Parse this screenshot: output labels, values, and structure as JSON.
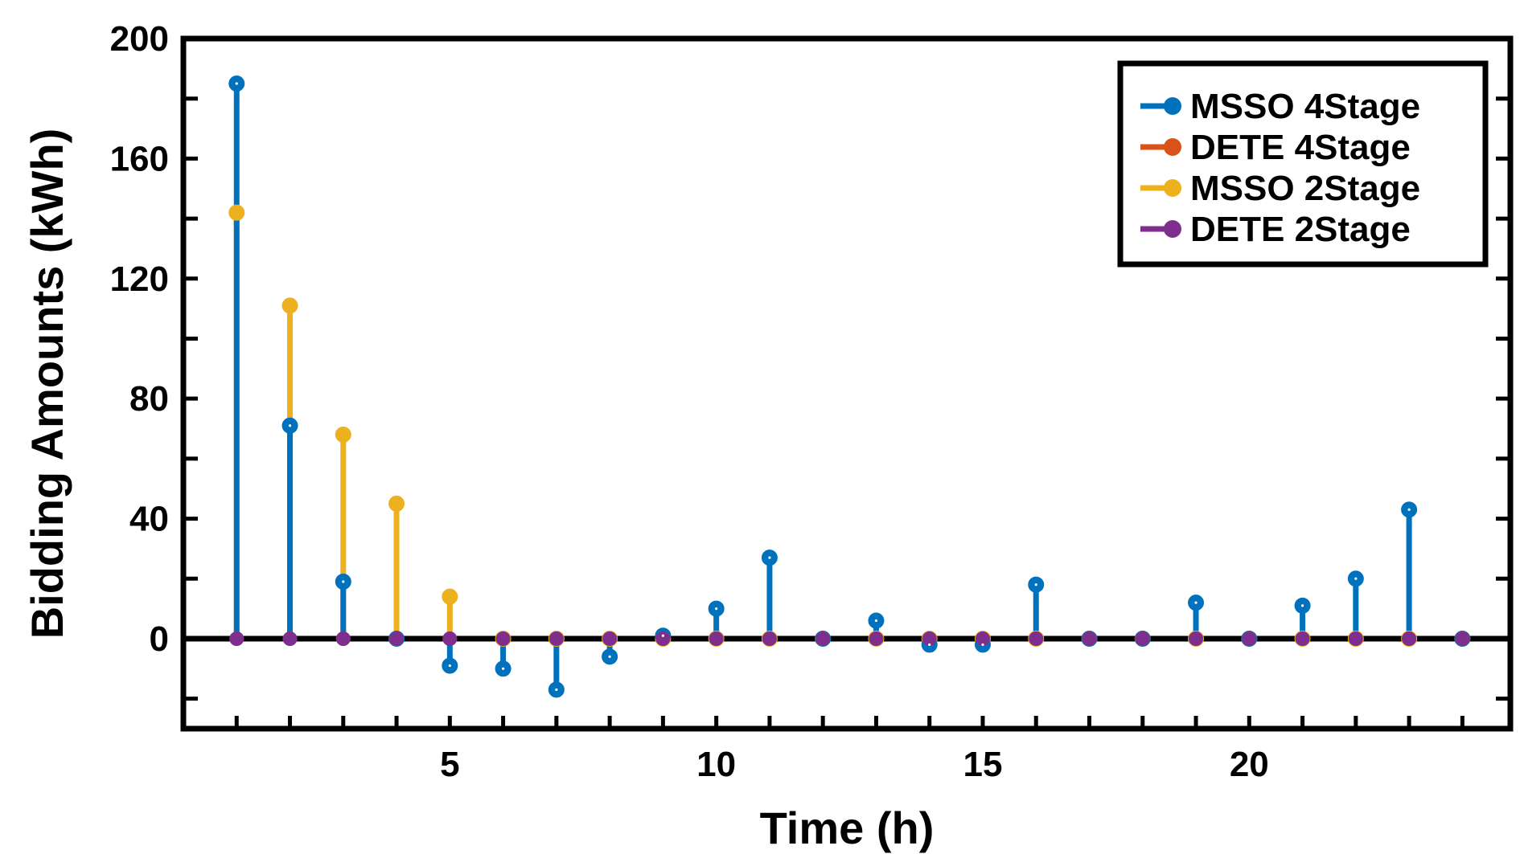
{
  "chart_data": {
    "type": "stem",
    "xlabel": "Time (h)",
    "ylabel": "Bidding Amounts (kWh)",
    "title": "",
    "xlim": [
      0,
      24.9
    ],
    "ylim": [
      -30,
      200
    ],
    "x_ticks": [
      5,
      10,
      15,
      20
    ],
    "y_ticks": [
      0,
      40,
      80,
      120,
      160,
      200
    ],
    "grid": false,
    "legend_position": "top-right",
    "x": [
      1,
      2,
      3,
      4,
      5,
      6,
      7,
      8,
      9,
      10,
      11,
      12,
      13,
      14,
      15,
      16,
      17,
      18,
      19,
      20,
      21,
      22,
      23,
      24
    ],
    "series": [
      {
        "name": "MSSO 4Stage",
        "color": "#0072BD",
        "values": [
          185,
          71,
          19,
          0,
          -9,
          -10,
          -17,
          -6,
          1,
          10,
          27,
          0,
          6,
          -2,
          -2,
          18,
          0,
          0,
          12,
          0,
          11,
          20,
          43,
          0
        ]
      },
      {
        "name": "DETE 4Stage",
        "color": "#D95319",
        "values": [
          0,
          0,
          0,
          0,
          0,
          0,
          0,
          0,
          0,
          0,
          0,
          0,
          0,
          0,
          0,
          0,
          0,
          0,
          0,
          0,
          0,
          0,
          0,
          0
        ]
      },
      {
        "name": "MSSO 2Stage",
        "color": "#EDB120",
        "values": [
          142,
          111,
          68,
          45,
          14,
          0,
          0,
          0,
          0,
          0,
          0,
          0,
          0,
          0,
          0,
          0,
          0,
          0,
          0,
          0,
          0,
          0,
          0,
          0
        ]
      },
      {
        "name": "DETE 2Stage",
        "color": "#7E2F8E",
        "values": [
          0,
          0,
          0,
          0,
          0,
          0,
          0,
          0,
          0,
          0,
          0,
          0,
          0,
          0,
          0,
          0,
          0,
          0,
          0,
          0,
          0,
          0,
          0,
          0
        ]
      }
    ]
  }
}
